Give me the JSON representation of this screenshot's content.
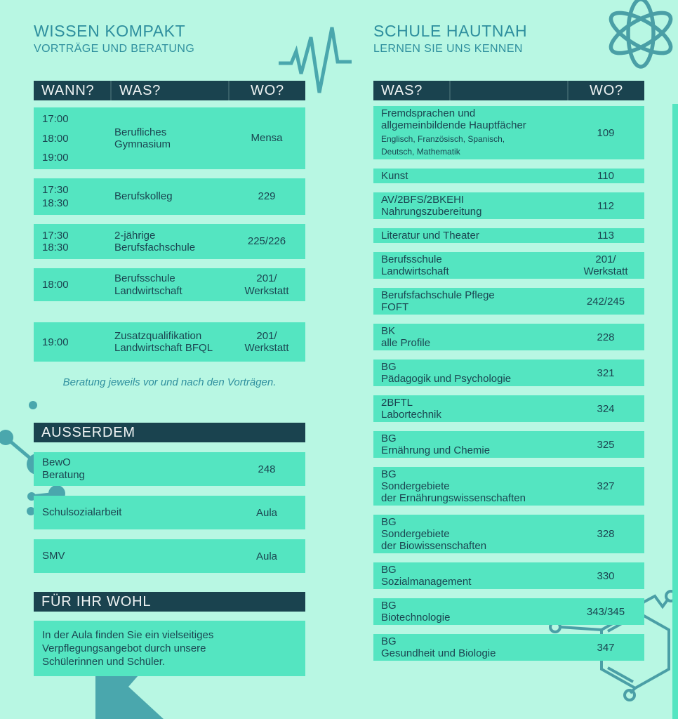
{
  "colors": {
    "background": "#b8f7e3",
    "row_fill": "#54e5c1",
    "header_bar": "#1a434f",
    "header_text": "#eef3f3",
    "title_teal": "#2e8f9e",
    "body_text": "#1b4551",
    "decoration_teal": "#4aa7ad"
  },
  "decorations": {
    "pulse_icon": "ecg-heartbeat-line",
    "atom_icon": "atom-orbitals",
    "molecule_left_icon": "molecule-ball-and-stick",
    "molecule_right_icon": "benzene-ring-molecule",
    "flask_icon": "flask-silhouette",
    "right_edge_strip": "accent-strip"
  },
  "left": {
    "title": "WISSEN KOMPAKT",
    "subtitle": "VORTRÄGE UND BERATUNG",
    "table": {
      "headers": [
        "WANN?",
        "WAS?",
        "WO?"
      ],
      "rows": [
        {
          "times": [
            "17:00",
            "18:00",
            "19:00"
          ],
          "what": "Berufliches\nGymnasium",
          "where": "Mensa"
        },
        {
          "times": [
            "17:30",
            "18:30"
          ],
          "what": "Berufskolleg",
          "where": "229"
        },
        {
          "times": [
            "17:30",
            "18:30"
          ],
          "what": "2-jährige\nBerufsfachschule",
          "where": "225/226"
        },
        {
          "times": [
            "18:00"
          ],
          "what": "Berufsschule\nLandwirtschaft",
          "where": "201/\nWerkstatt"
        },
        {
          "times": [
            "19:00"
          ],
          "what": "Zusatzqualifikation\nLandwirtschaft BFQL",
          "where": "201/\nWerkstatt"
        }
      ]
    },
    "note": "Beratung jeweils vor und nach den Vorträgen.",
    "ausserdem": {
      "title": "AUSSERDEM",
      "rows": [
        {
          "what": "BewO\nBeratung",
          "where": "248"
        },
        {
          "what": "Schulsozialarbeit",
          "where": "Aula"
        },
        {
          "what": "SMV",
          "where": "Aula"
        }
      ]
    },
    "wohl": {
      "title": "FÜR IHR WOHL",
      "text": "In der Aula finden Sie ein vielseitiges\nVerpflegungsangebot durch unsere\nSchülerinnen und Schüler."
    }
  },
  "right": {
    "title": "SCHULE HAUTNAH",
    "subtitle": "LERNEN SIE UNS KENNEN",
    "table": {
      "headers": [
        "WAS?",
        "WO?"
      ],
      "rows": [
        {
          "what": "Fremdsprachen und\nallgemeinbildende Hauptfächer",
          "sub": "Englisch, Französisch, Spanisch,\nDeutsch, Mathematik",
          "where": "109"
        },
        {
          "what": "Kunst",
          "where": "110"
        },
        {
          "what": "AV/2BFS/2BKEHI\nNahrungszubereitung",
          "where": "112"
        },
        {
          "what": "Literatur und Theater",
          "where": "113"
        },
        {
          "what": "Berufsschule\nLandwirtschaft",
          "where": "201/\nWerkstatt"
        },
        {
          "what": "Berufsfachschule Pflege\nFOFT",
          "where": "242/245"
        },
        {
          "what": "BK\nalle Profile",
          "where": "228"
        },
        {
          "what": "BG\nPädagogik und Psychologie",
          "where": "321"
        },
        {
          "what": "2BFTL\nLabortechnik",
          "where": "324"
        },
        {
          "what": "BG\nErnährung und Chemie",
          "where": "325"
        },
        {
          "what": "BG\nSondergebiete\nder Ernährungswissenschaften",
          "where": "327"
        },
        {
          "what": "BG\nSondergebiete\nder Biowissenschaften",
          "where": "328"
        },
        {
          "what": "BG\nSozialmanagement",
          "where": "330"
        },
        {
          "what": "BG\nBiotechnologie",
          "where": "343/345"
        },
        {
          "what": "BG\nGesundheit und Biologie",
          "where": "347"
        }
      ]
    }
  }
}
